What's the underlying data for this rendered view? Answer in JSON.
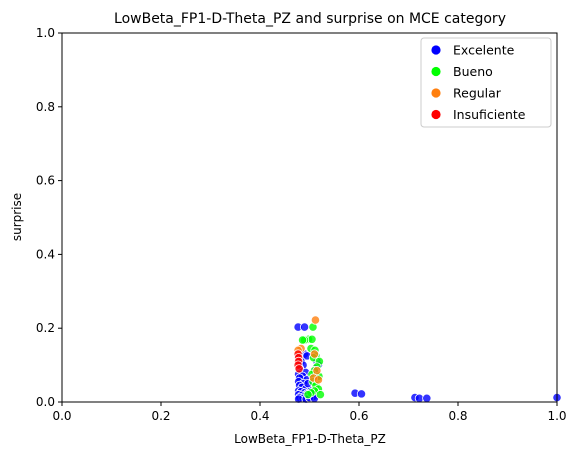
{
  "chart_data": {
    "type": "scatter",
    "title": "LowBeta_FP1-D-Theta_PZ and surprise on MCE category",
    "xlabel": "LowBeta_FP1-D-Theta_PZ",
    "ylabel": "surprise",
    "xlim": [
      0.0,
      1.0
    ],
    "ylim": [
      0.0,
      1.0
    ],
    "xticks": [
      "0.0",
      "0.2",
      "0.4",
      "0.6",
      "0.8",
      "1.0"
    ],
    "yticks": [
      "0.0",
      "0.2",
      "0.4",
      "0.6",
      "0.8",
      "1.0"
    ],
    "grid": false,
    "legend_position": "top-right",
    "series": [
      {
        "name": "Excelente",
        "color": "#0000ff",
        "points": [
          [
            0.477,
            0.203
          ],
          [
            0.49,
            0.203
          ],
          [
            0.49,
            0.13
          ],
          [
            0.495,
            0.125
          ],
          [
            0.478,
            0.12
          ],
          [
            0.483,
            0.11
          ],
          [
            0.487,
            0.1
          ],
          [
            0.48,
            0.09
          ],
          [
            0.492,
            0.08
          ],
          [
            0.478,
            0.075
          ],
          [
            0.486,
            0.07
          ],
          [
            0.48,
            0.065
          ],
          [
            0.495,
            0.06
          ],
          [
            0.478,
            0.055
          ],
          [
            0.488,
            0.05
          ],
          [
            0.48,
            0.045
          ],
          [
            0.485,
            0.04
          ],
          [
            0.492,
            0.035
          ],
          [
            0.478,
            0.03
          ],
          [
            0.483,
            0.028
          ],
          [
            0.49,
            0.025
          ],
          [
            0.495,
            0.022
          ],
          [
            0.478,
            0.02
          ],
          [
            0.485,
            0.018
          ],
          [
            0.49,
            0.015
          ],
          [
            0.48,
            0.012
          ],
          [
            0.487,
            0.01
          ],
          [
            0.478,
            0.008
          ],
          [
            0.493,
            0.008
          ],
          [
            0.505,
            0.02
          ],
          [
            0.508,
            0.015
          ],
          [
            0.5,
            0.012
          ],
          [
            0.51,
            0.01
          ],
          [
            0.515,
            0.11
          ],
          [
            0.518,
            0.1
          ],
          [
            0.512,
            0.09
          ],
          [
            0.503,
            0.03
          ],
          [
            0.497,
            0.05
          ],
          [
            0.592,
            0.024
          ],
          [
            0.605,
            0.022
          ],
          [
            0.713,
            0.012
          ],
          [
            0.722,
            0.01
          ],
          [
            0.737,
            0.01
          ],
          [
            1.0,
            0.012
          ]
        ]
      },
      {
        "name": "Bueno",
        "color": "#00ff00",
        "points": [
          [
            0.507,
            0.203
          ],
          [
            0.498,
            0.17
          ],
          [
            0.505,
            0.17
          ],
          [
            0.49,
            0.168
          ],
          [
            0.503,
            0.145
          ],
          [
            0.511,
            0.14
          ],
          [
            0.513,
            0.125
          ],
          [
            0.508,
            0.12
          ],
          [
            0.52,
            0.11
          ],
          [
            0.515,
            0.095
          ],
          [
            0.51,
            0.085
          ],
          [
            0.505,
            0.075
          ],
          [
            0.517,
            0.065
          ],
          [
            0.507,
            0.055
          ],
          [
            0.513,
            0.045
          ],
          [
            0.518,
            0.035
          ],
          [
            0.51,
            0.03
          ],
          [
            0.522,
            0.02
          ],
          [
            0.503,
            0.025
          ],
          [
            0.497,
            0.02
          ],
          [
            0.486,
            0.168
          ],
          [
            0.519,
            0.07
          ]
        ]
      },
      {
        "name": "Regular",
        "color": "#ff7f0e",
        "points": [
          [
            0.512,
            0.222
          ],
          [
            0.483,
            0.145
          ],
          [
            0.51,
            0.13
          ],
          [
            0.515,
            0.085
          ],
          [
            0.508,
            0.065
          ],
          [
            0.518,
            0.06
          ],
          [
            0.477,
            0.14
          ]
        ]
      },
      {
        "name": "Insuficiente",
        "color": "#ff0000",
        "points": [
          [
            0.477,
            0.13
          ],
          [
            0.478,
            0.12
          ],
          [
            0.478,
            0.11
          ],
          [
            0.477,
            0.1
          ],
          [
            0.479,
            0.09
          ]
        ]
      }
    ]
  }
}
